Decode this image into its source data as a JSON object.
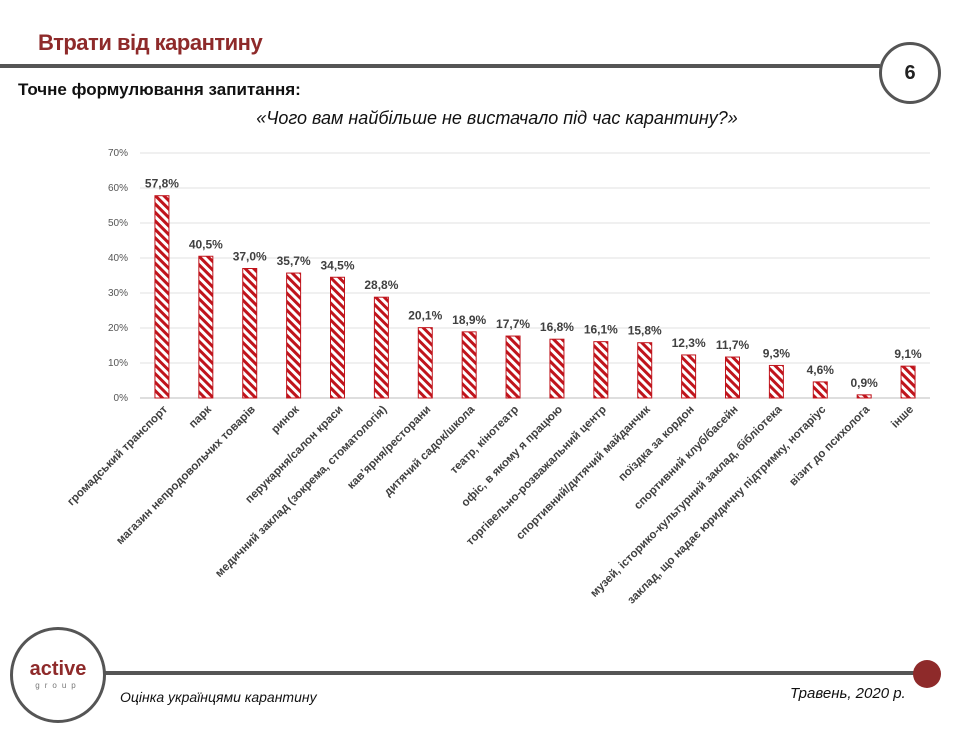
{
  "header": {
    "title": "Втрати від карантину",
    "page_number": "6",
    "subtitle": "Точне формулювання запитання:",
    "question": "«Чого вам найбільше не вистачало під час карантину?»"
  },
  "footer": {
    "logo_main": "active",
    "logo_sub": "group",
    "left_text": "Оцінка українцями карантину",
    "right_text": "Травень, 2020 р."
  },
  "colors": {
    "accent": "#8e2a2a",
    "bar": "#c0141c",
    "line": "#555555"
  },
  "chart_data": {
    "type": "bar",
    "title": "",
    "xlabel": "",
    "ylabel": "",
    "ylim": [
      0,
      70
    ],
    "yticks": [
      0,
      10,
      20,
      30,
      40,
      50,
      60,
      70
    ],
    "grid": true,
    "bar_pattern": "diagonal-hatch",
    "categories": [
      "громадський транспорт",
      "парк",
      "магазин непродовольчих товарів",
      "ринок",
      "перукарня/салон краси",
      "медичний заклад (зокрема, стоматологія)",
      "кав’ярня/ресторани",
      "дитячий садок/школа",
      "театр, кінотеатр",
      "офіс, в якому я працюю",
      "торгівельно-розважальний центр",
      "спортивний/дитячий майданчик",
      "поїздка за кордон",
      "спортивний клуб/басейн",
      "музей, історико-культурний заклад, бібліотека",
      "заклад, що надає юридичну підтримку, нотаріус",
      "візит до психолога",
      "інше"
    ],
    "values": [
      57.8,
      40.5,
      37.0,
      35.7,
      34.5,
      28.8,
      20.1,
      18.9,
      17.7,
      16.8,
      16.1,
      15.8,
      12.3,
      11.7,
      9.3,
      4.6,
      0.9,
      9.1
    ],
    "labels": [
      "57,8%",
      "40,5%",
      "37,0%",
      "35,7%",
      "34,5%",
      "28,8%",
      "20,1%",
      "18,9%",
      "17,7%",
      "16,8%",
      "16,1%",
      "15,8%",
      "12,3%",
      "11,7%",
      "9,3%",
      "4,6%",
      "0,9%",
      "9,1%"
    ]
  }
}
